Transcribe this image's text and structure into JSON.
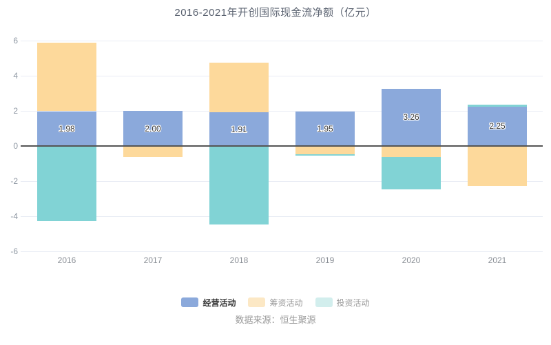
{
  "title": "2016-2021年开创国际现金流净额（亿元）",
  "source": "数据来源：恒生聚源",
  "colors": {
    "operating": "#8ba9db",
    "financing": "#fdd99b",
    "investing": "#81d3d5",
    "zero_line": "#545454",
    "gridline": "#e8ecf4",
    "axis_label": "#8f98a3",
    "title_text": "#5a6270"
  },
  "chart_data": {
    "type": "bar",
    "stacked": true,
    "grid": true,
    "legend_position": "bottom",
    "title": "2016-2021年开创国际现金流净额（亿元）",
    "xlabel": "",
    "ylabel": "",
    "ylim": [
      -6,
      6
    ],
    "ytick_step": 2,
    "yticks": [
      -6,
      -4,
      -2,
      0,
      2,
      4,
      6
    ],
    "categories": [
      "2016",
      "2017",
      "2018",
      "2019",
      "2020",
      "2021"
    ],
    "series": [
      {
        "name": "经营活动",
        "key": "operating",
        "color": "#8ba9db",
        "values": [
          1.98,
          2.0,
          1.91,
          1.95,
          3.26,
          2.25
        ],
        "labels": [
          "1.98",
          "2.00",
          "1.91",
          "1.95",
          "3.26",
          "2.25"
        ]
      },
      {
        "name": "筹资活动",
        "key": "financing",
        "color": "#fdd99b",
        "values": [
          3.9,
          -0.63,
          2.85,
          -0.49,
          -0.63,
          -2.29
        ]
      },
      {
        "name": "投资活动",
        "key": "investing",
        "color": "#81d3d5",
        "values": [
          -4.28,
          0,
          -4.48,
          -0.06,
          -1.85,
          0.1
        ]
      }
    ]
  },
  "legend": {
    "items": [
      {
        "label": "经营活动",
        "key": "operating",
        "swatch": "#8ba9db",
        "active": true
      },
      {
        "label": "筹资活动",
        "key": "financing",
        "swatch": "#fce8c5",
        "active": false
      },
      {
        "label": "投资活动",
        "key": "investing",
        "swatch": "#d2eeed",
        "active": false
      }
    ]
  }
}
